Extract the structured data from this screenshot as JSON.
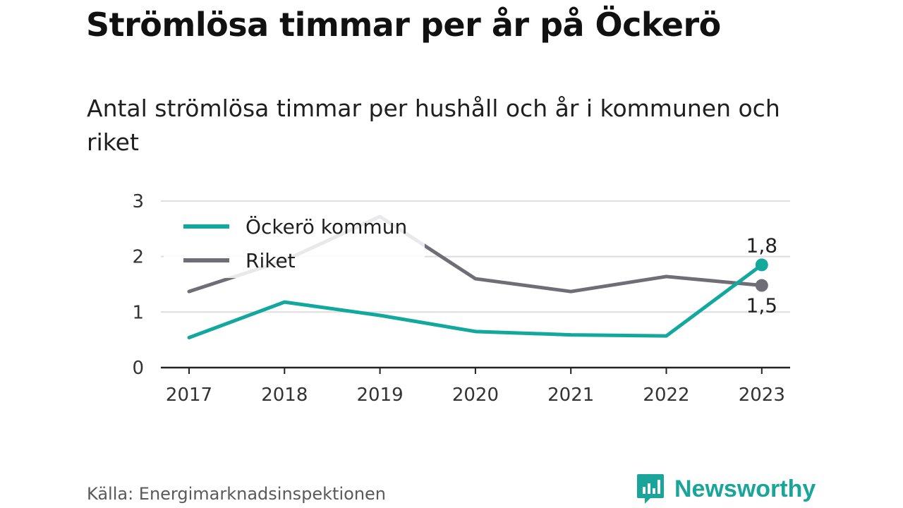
{
  "header": {
    "title": "Strömlösa timmar per år på Öckerö",
    "subtitle": "Antal strömlösa timmar per hushåll och år i kommunen och riket"
  },
  "footer": {
    "source": "Källa: Energimarknadsinspektionen",
    "brand": "Newsworthy",
    "brand_icon": "newsworthy-logo-icon",
    "brand_color": "#1aa59b"
  },
  "chart_data": {
    "type": "line",
    "title": "Strömlösa timmar per år på Öckerö",
    "subtitle": "Antal strömlösa timmar per hushåll och år i kommunen och riket",
    "xlabel": "",
    "ylabel": "",
    "x": [
      "2017",
      "2018",
      "2019",
      "2020",
      "2021",
      "2022",
      "2023"
    ],
    "ylim": [
      0,
      3
    ],
    "yticks": [
      0,
      1,
      2,
      3
    ],
    "grid": true,
    "legend_position": "top-left",
    "series": [
      {
        "name": "Öckerö kommun",
        "color": "#13a89e",
        "values": [
          0.54,
          1.18,
          0.94,
          0.65,
          0.59,
          0.57,
          1.85
        ],
        "end_label": "1,8"
      },
      {
        "name": "Riket",
        "color": "#6f6e77",
        "values": [
          1.37,
          1.93,
          2.72,
          1.6,
          1.37,
          1.64,
          1.48
        ],
        "end_label": "1,5"
      }
    ]
  }
}
